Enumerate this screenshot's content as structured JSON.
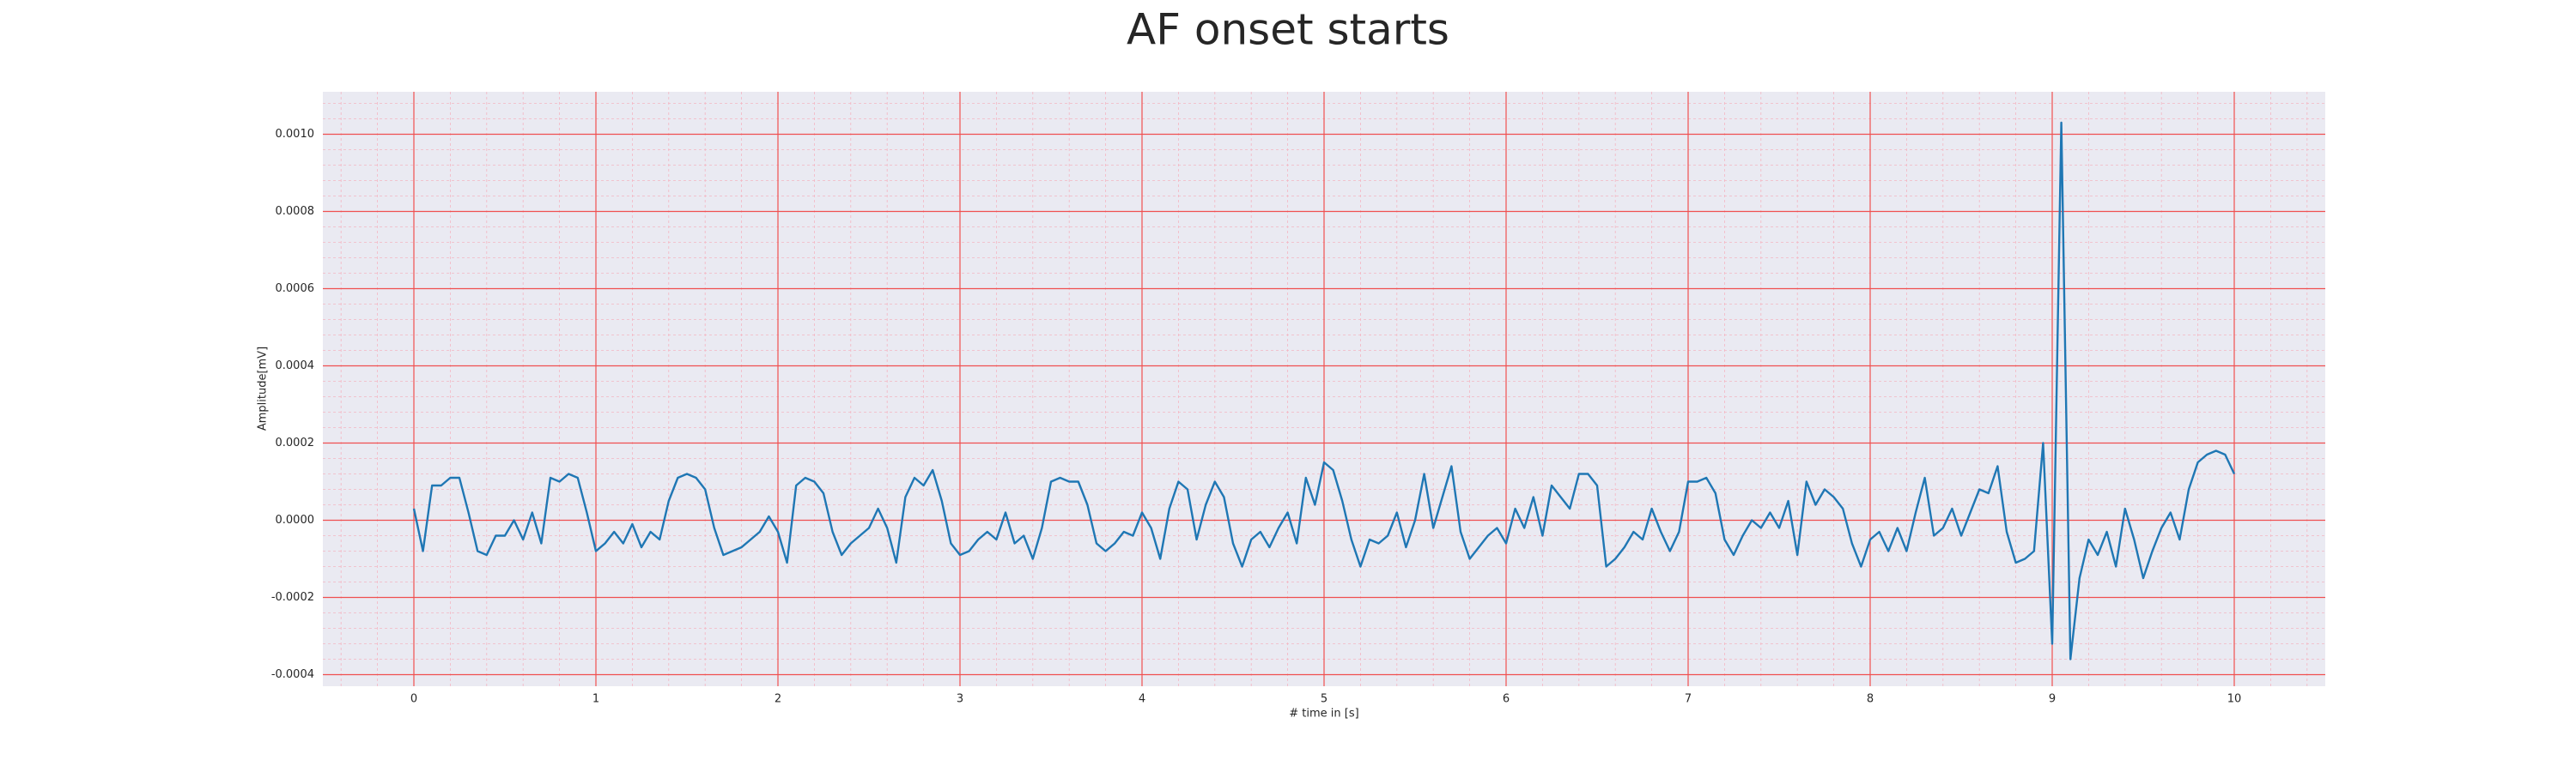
{
  "chart_data": {
    "type": "line",
    "title": "AF onset starts",
    "xlabel": "# time in [s]",
    "ylabel": "Amplitude[mV]",
    "color": "#1f77b4",
    "grid": true,
    "minor_grid": true,
    "x": [
      0,
      0.05,
      0.1,
      0.15,
      0.2,
      0.25,
      0.3,
      0.35,
      0.4,
      0.45,
      0.5,
      0.55,
      0.6,
      0.65,
      0.7,
      0.75,
      0.8,
      0.85,
      0.9,
      0.95,
      1,
      1.05,
      1.1,
      1.15,
      1.2,
      1.25,
      1.3,
      1.35,
      1.4,
      1.45,
      1.5,
      1.55,
      1.6,
      1.65,
      1.7,
      1.75,
      1.8,
      1.85,
      1.9,
      1.95,
      2,
      2.05,
      2.1,
      2.15,
      2.2,
      2.25,
      2.3,
      2.35,
      2.4,
      2.45,
      2.5,
      2.55,
      2.6,
      2.65,
      2.7,
      2.75,
      2.8,
      2.85,
      2.9,
      2.95,
      3,
      3.05,
      3.1,
      3.15,
      3.2,
      3.25,
      3.3,
      3.35,
      3.4,
      3.45,
      3.5,
      3.55,
      3.6,
      3.65,
      3.7,
      3.75,
      3.8,
      3.85,
      3.9,
      3.95,
      4,
      4.05,
      4.1,
      4.15,
      4.2,
      4.25,
      4.3,
      4.35,
      4.4,
      4.45,
      4.5,
      4.55,
      4.6,
      4.65,
      4.7,
      4.75,
      4.8,
      4.85,
      4.9,
      4.95,
      5,
      5.05,
      5.1,
      5.15,
      5.2,
      5.25,
      5.3,
      5.35,
      5.4,
      5.45,
      5.5,
      5.55,
      5.6,
      5.65,
      5.7,
      5.75,
      5.8,
      5.85,
      5.9,
      5.95,
      6,
      6.05,
      6.1,
      6.15,
      6.2,
      6.25,
      6.3,
      6.35,
      6.4,
      6.45,
      6.5,
      6.55,
      6.6,
      6.65,
      6.7,
      6.75,
      6.8,
      6.85,
      6.9,
      6.95,
      7,
      7.05,
      7.1,
      7.15,
      7.2,
      7.25,
      7.3,
      7.35,
      7.4,
      7.45,
      7.5,
      7.55,
      7.6,
      7.65,
      7.7,
      7.75,
      7.8,
      7.85,
      7.9,
      7.95,
      8,
      8.05,
      8.1,
      8.15,
      8.2,
      8.25,
      8.3,
      8.35,
      8.4,
      8.45,
      8.5,
      8.55,
      8.6,
      8.65,
      8.7,
      8.75,
      8.8,
      8.85,
      8.9,
      8.95,
      9,
      9.05,
      9.1,
      9.15,
      9.2,
      9.25,
      9.3,
      9.35,
      9.4,
      9.45,
      9.5,
      9.55,
      9.6,
      9.65,
      9.7,
      9.75,
      9.8,
      9.85,
      9.9,
      9.95,
      10
    ],
    "values": [
      3e-05,
      -8e-05,
      9e-05,
      9e-05,
      0.00011,
      0.00011,
      2e-05,
      -8e-05,
      -9e-05,
      -4e-05,
      -4e-05,
      0.0,
      -5e-05,
      2e-05,
      -6e-05,
      0.00011,
      0.0001,
      0.00012,
      0.00011,
      2e-05,
      -8e-05,
      -6e-05,
      -3e-05,
      -6e-05,
      -1e-05,
      -7e-05,
      -3e-05,
      -5e-05,
      5e-05,
      0.00011,
      0.00012,
      0.00011,
      8e-05,
      -2e-05,
      -9e-05,
      -8e-05,
      -7e-05,
      -5e-05,
      -3e-05,
      1e-05,
      -3e-05,
      -0.00011,
      9e-05,
      0.00011,
      0.0001,
      7e-05,
      -3e-05,
      -9e-05,
      -6e-05,
      -4e-05,
      -2e-05,
      3e-05,
      -2e-05,
      -0.00011,
      6e-05,
      0.00011,
      9e-05,
      0.00013,
      5e-05,
      -6e-05,
      -9e-05,
      -8e-05,
      -5e-05,
      -3e-05,
      -5e-05,
      2e-05,
      -6e-05,
      -4e-05,
      -0.0001,
      -2e-05,
      0.0001,
      0.00011,
      0.0001,
      0.0001,
      4e-05,
      -6e-05,
      -8e-05,
      -6e-05,
      -3e-05,
      -4e-05,
      2e-05,
      -2e-05,
      -0.0001,
      3e-05,
      0.0001,
      8e-05,
      -5e-05,
      4e-05,
      0.0001,
      6e-05,
      -6e-05,
      -0.00012,
      -5e-05,
      -3e-05,
      -7e-05,
      -2e-05,
      2e-05,
      -6e-05,
      0.00011,
      4e-05,
      0.00015,
      0.00013,
      5e-05,
      -5e-05,
      -0.00012,
      -5e-05,
      -6e-05,
      -4e-05,
      2e-05,
      -7e-05,
      0.0,
      0.00012,
      -2e-05,
      6e-05,
      0.00014,
      -3e-05,
      -0.0001,
      -7e-05,
      -4e-05,
      -2e-05,
      -6e-05,
      3e-05,
      -2e-05,
      6e-05,
      -4e-05,
      9e-05,
      6e-05,
      3e-05,
      0.00012,
      0.00012,
      9e-05,
      -0.00012,
      -0.0001,
      -7e-05,
      -3e-05,
      -5e-05,
      3e-05,
      -3e-05,
      -8e-05,
      -3e-05,
      0.0001,
      0.0001,
      0.00011,
      7e-05,
      -5e-05,
      -9e-05,
      -4e-05,
      0.0,
      -2e-05,
      2e-05,
      -2e-05,
      5e-05,
      -9e-05,
      0.0001,
      4e-05,
      8e-05,
      6e-05,
      3e-05,
      -6e-05,
      -0.00012,
      -5e-05,
      -3e-05,
      -8e-05,
      -2e-05,
      -8e-05,
      2e-05,
      0.00011,
      -4e-05,
      -2e-05,
      3e-05,
      -4e-05,
      2e-05,
      8e-05,
      7e-05,
      0.00014,
      -3e-05,
      -0.00011,
      -0.0001,
      -8e-05,
      0.0002,
      -0.00032,
      0.00103,
      -0.00036,
      -0.00015,
      -5e-05,
      -9e-05,
      -3e-05,
      -0.00012,
      3e-05,
      -5e-05,
      -0.00015,
      -8e-05,
      -2e-05,
      2e-05,
      -5e-05,
      8e-05,
      0.00015,
      0.00017,
      0.00018,
      0.00017,
      0.00012
    ],
    "xlim": [
      -0.5,
      10.5
    ],
    "xticks": [
      0,
      1,
      2,
      3,
      4,
      5,
      6,
      7,
      8,
      9,
      10
    ],
    "ylim": [
      -0.00043,
      0.00111
    ],
    "yticks": [
      {
        "value": -0.0004,
        "label": "-0.0004"
      },
      {
        "value": -0.0002,
        "label": "-0.0002"
      },
      {
        "value": 0,
        "label": "0.0000"
      },
      {
        "value": 0.0002,
        "label": "0.0002"
      },
      {
        "value": 0.0004,
        "label": "0.0004"
      },
      {
        "value": 0.0006,
        "label": "0.0006"
      },
      {
        "value": 0.0008,
        "label": "0.0008"
      },
      {
        "value": 0.001,
        "label": "0.0010"
      }
    ]
  }
}
